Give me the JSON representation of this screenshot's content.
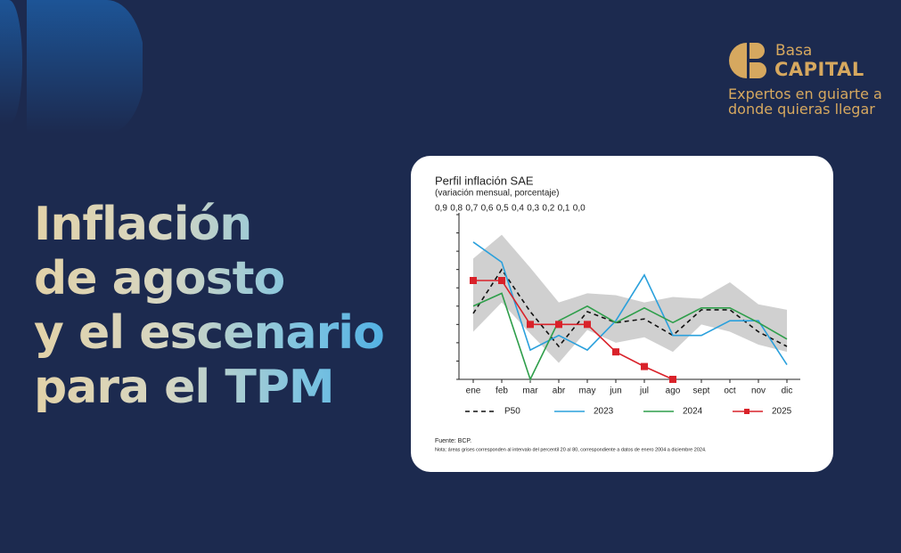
{
  "brand": {
    "name_top": "Basa",
    "name_bottom": "CAPITAL",
    "tagline": [
      "Expertos en guiarte a",
      "donde quieras llegar"
    ]
  },
  "headline": [
    "Inflación",
    "de agosto",
    "y el escenario",
    "para el TPM"
  ],
  "chart_data": {
    "type": "line",
    "title": "Perfil inflación SAE",
    "subtitle": "(variación mensual, porcentaje)",
    "source": "Fuente: BCP.",
    "note": "Nota: áreas grises corresponden al intervalo del percentil 20 al 80, correspondiente a datos de enero 2004 a diciembre 2024.",
    "categories": [
      "ene",
      "feb",
      "mar",
      "abr",
      "may",
      "jun",
      "jul",
      "ago",
      "sept",
      "oct",
      "nov",
      "dic"
    ],
    "ylim": [
      0,
      0.9
    ],
    "yticks": [
      {
        "value": 0.9,
        "label": "0,9"
      },
      {
        "value": 0.8,
        "label": "0,8"
      },
      {
        "value": 0.7,
        "label": "0,7"
      },
      {
        "value": 0.6,
        "label": "0,6"
      },
      {
        "value": 0.5,
        "label": "0,5"
      },
      {
        "value": 0.4,
        "label": "0,4"
      },
      {
        "value": 0.3,
        "label": "0,3"
      },
      {
        "value": 0.2,
        "label": "0,2"
      },
      {
        "value": 0.1,
        "label": "0,1"
      },
      {
        "value": 0,
        "label": "0,0"
      }
    ],
    "band": {
      "color": "#d0d0d0",
      "upper": [
        0.66,
        0.79,
        0.61,
        0.42,
        0.47,
        0.46,
        0.42,
        0.45,
        0.44,
        0.53,
        0.41,
        0.38
      ],
      "lower": [
        0.26,
        0.42,
        0.25,
        0.09,
        0.27,
        0.2,
        0.23,
        0.15,
        0.3,
        0.26,
        0.19,
        0.15
      ]
    },
    "series": [
      {
        "name": "P50",
        "color": "#111111",
        "dashed": true,
        "values": [
          0.36,
          0.6,
          0.37,
          0.18,
          0.37,
          0.31,
          0.33,
          0.24,
          0.38,
          0.38,
          0.26,
          0.18
        ]
      },
      {
        "name": "2023",
        "color": "#2aa0dc",
        "values": [
          0.75,
          0.64,
          0.16,
          0.24,
          0.16,
          0.32,
          0.57,
          0.24,
          0.24,
          0.32,
          0.32,
          0.08
        ]
      },
      {
        "name": "2024",
        "color": "#2e9e4a",
        "values": [
          0.4,
          0.47,
          0,
          0.32,
          0.4,
          0.31,
          0.39,
          0.31,
          0.39,
          0.39,
          0.31,
          0.22
        ]
      },
      {
        "name": "2025",
        "color": "#d9222a",
        "markers": true,
        "values": [
          0.54,
          0.54,
          0.3,
          0.3,
          0.3,
          0.15,
          0.07,
          0,
          null,
          null,
          null,
          null
        ]
      }
    ]
  }
}
